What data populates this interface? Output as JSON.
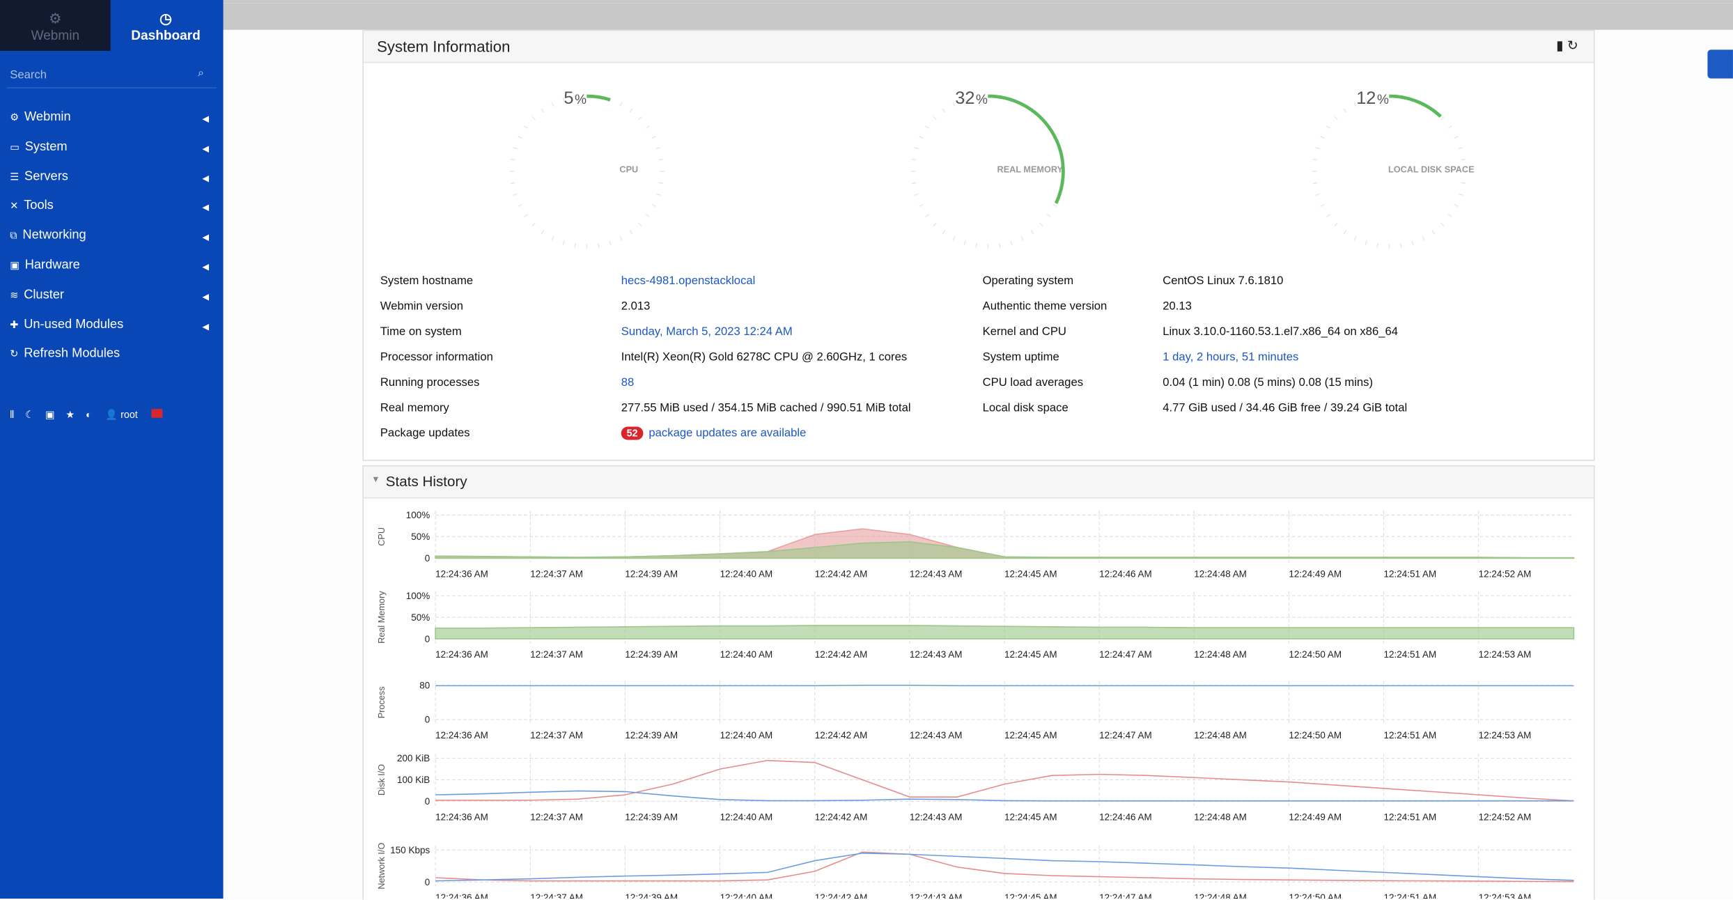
{
  "sidebar": {
    "tabs": [
      "Webmin",
      "Dashboard"
    ],
    "search": "Search",
    "menu": [
      "Webmin",
      "System",
      "Servers",
      "Tools",
      "Networking",
      "Hardware",
      "Cluster",
      "Un-used Modules",
      "Refresh Modules"
    ],
    "user": "root"
  },
  "system_info": {
    "title": "System Information",
    "gauges": [
      {
        "value": 5,
        "unit": "%",
        "label": "CPU",
        "color": "#5cb85c"
      },
      {
        "value": 32,
        "unit": "%",
        "label": "REAL MEMORY",
        "color": "#5cb85c"
      },
      {
        "value": 12,
        "unit": "%",
        "label": "LOCAL DISK SPACE",
        "color": "#5cb85c"
      }
    ],
    "left": [
      [
        "System hostname",
        "hecs-4981.openstacklocal"
      ],
      [
        "Webmin version",
        "2.013"
      ],
      [
        "Time on system",
        "Sunday, March 5, 2023 12:24 AM"
      ],
      [
        "Processor information",
        "Intel(R) Xeon(R) Gold 6278C CPU @ 2.60GHz, 1 cores"
      ],
      [
        "Running processes",
        "88"
      ],
      [
        "Real memory",
        "277.55 MiB used / 354.15 MiB cached / 990.51 MiB total"
      ],
      [
        "Package updates",
        "package updates are available"
      ]
    ],
    "package_updates_count": "52",
    "right": [
      [
        "Operating system",
        "CentOS Linux 7.6.1810"
      ],
      [
        "Authentic theme version",
        "20.13"
      ],
      [
        "Kernel and CPU",
        "Linux 3.10.0-1160.53.1.el7.x86_64 on x86_64"
      ],
      [
        "System uptime",
        "1 day, 2 hours, 51 minutes"
      ],
      [
        "CPU load averages",
        "0.04 (1 min) 0.08 (5 mins) 0.08 (15 mins)"
      ],
      [
        "Local disk space",
        "4.77 GiB used / 34.46 GiB free / 39.24 GiB total"
      ]
    ]
  },
  "stats_history": {
    "title": "Stats History",
    "charts": [
      {
        "type": "area",
        "ylabel": "CPU",
        "ylim": [
          0,
          100
        ],
        "yticks": [
          {
            "value": 0,
            "label": "0"
          },
          {
            "value": 50,
            "label": "50%"
          },
          {
            "value": 100,
            "label": "100%"
          }
        ],
        "xticks": [
          "12:24:36 AM",
          "12:24:37 AM",
          "12:24:39 AM",
          "12:24:40 AM",
          "12:24:42 AM",
          "12:24:43 AM",
          "12:24:45 AM",
          "12:24:46 AM",
          "12:24:48 AM",
          "12:24:49 AM",
          "12:24:51 AM",
          "12:24:52 AM"
        ],
        "series": [
          {
            "color": "#e8a0a0",
            "values": [
              5,
              4,
              3,
              2,
              3,
              6,
              10,
              15,
              55,
              68,
              55,
              25,
              3,
              2,
              2,
              2,
              2,
              2,
              2,
              2,
              2,
              2,
              2,
              1,
              1
            ]
          },
          {
            "color": "#9cc68a",
            "values": [
              5,
              4,
              3,
              2,
              3,
              6,
              10,
              15,
              25,
              35,
              38,
              25,
              3,
              2,
              2,
              2,
              2,
              2,
              2,
              2,
              2,
              2,
              2,
              1,
              1
            ]
          }
        ]
      },
      {
        "type": "area",
        "ylabel": "Real Memory",
        "ylim": [
          0,
          100
        ],
        "yticks": [
          {
            "value": 0,
            "label": "0"
          },
          {
            "value": 50,
            "label": "50%"
          },
          {
            "value": 100,
            "label": "100%"
          }
        ],
        "xticks": [
          "12:24:36 AM",
          "12:24:37 AM",
          "12:24:39 AM",
          "12:24:40 AM",
          "12:24:42 AM",
          "12:24:43 AM",
          "12:24:45 AM",
          "12:24:47 AM",
          "12:24:48 AM",
          "12:24:50 AM",
          "12:24:51 AM",
          "12:24:53 AM"
        ],
        "series": [
          {
            "color": "#9cc68a",
            "values": [
              25,
              25,
              26,
              27,
              28,
              29,
              30,
              30,
              31,
              31,
              31,
              30,
              29,
              28,
              27,
              27,
              26,
              26,
              26,
              26,
              26,
              26,
              26,
              26,
              26
            ]
          }
        ]
      },
      {
        "type": "line",
        "ylabel": "Process",
        "ylim": [
          0,
          80
        ],
        "yticks": [
          0,
          80
        ],
        "xticks": [
          "12:24:36 AM",
          "12:24:37 AM",
          "12:24:39 AM",
          "12:24:40 AM",
          "12:24:42 AM",
          "12:24:43 AM",
          "12:24:45 AM",
          "12:24:47 AM",
          "12:24:48 AM",
          "12:24:50 AM",
          "12:24:51 AM",
          "12:24:53 AM"
        ],
        "series": [
          {
            "color": "#6a9be0",
            "values": [
              79,
              79,
              79,
              79,
              79,
              79,
              79,
              79,
              79,
              80,
              80,
              79,
              79,
              79,
              79,
              79,
              79,
              79,
              79,
              79,
              79,
              79,
              79,
              79,
              79
            ]
          }
        ]
      },
      {
        "type": "line",
        "ylabel": "Disk I/O",
        "ylim": [
          0,
          200
        ],
        "yticks": [
          {
            "value": 0,
            "label": "0"
          },
          {
            "value": 100,
            "label": "100 KiB"
          },
          {
            "value": 200,
            "label": "200 KiB"
          }
        ],
        "xticks": [
          "12:24:36 AM",
          "12:24:37 AM",
          "12:24:39 AM",
          "12:24:40 AM",
          "12:24:42 AM",
          "12:24:43 AM",
          "12:24:45 AM",
          "12:24:46 AM",
          "12:24:48 AM",
          "12:24:49 AM",
          "12:24:51 AM",
          "12:24:52 AM"
        ],
        "series": [
          {
            "color": "#e88a8a",
            "values": [
              5,
              5,
              5,
              10,
              30,
              80,
              150,
              190,
              180,
              100,
              20,
              20,
              80,
              120,
              125,
              120,
              110,
              100,
              90,
              75,
              60,
              45,
              30,
              15,
              2
            ]
          },
          {
            "color": "#6a9be0",
            "values": [
              30,
              35,
              42,
              48,
              45,
              25,
              8,
              3,
              3,
              5,
              10,
              8,
              3,
              2,
              2,
              2,
              2,
              2,
              2,
              2,
              2,
              2,
              2,
              2,
              2
            ]
          }
        ]
      },
      {
        "type": "line",
        "ylabel": "Network I/O",
        "ylim": [
          0,
          150
        ],
        "yticks": [
          {
            "value": 0,
            "label": "0"
          },
          {
            "value": 150,
            "label": "150 Kbps"
          }
        ],
        "xticks": [
          "12:24:36 AM",
          "12:24:37 AM",
          "12:24:39 AM",
          "12:24:40 AM",
          "12:24:42 AM",
          "12:24:43 AM",
          "12:24:45 AM",
          "12:24:47 AM",
          "12:24:48 AM",
          "12:24:50 AM",
          "12:24:51 AM",
          "12:24:53 AM"
        ],
        "series": [
          {
            "color": "#e88a8a",
            "values": [
              20,
              10,
              5,
              5,
              5,
              5,
              5,
              10,
              50,
              140,
              130,
              70,
              40,
              30,
              25,
              20,
              15,
              12,
              10,
              8,
              6,
              5,
              4,
              3,
              2
            ]
          },
          {
            "color": "#6a9be0",
            "values": [
              5,
              10,
              15,
              22,
              28,
              32,
              38,
              45,
              100,
              135,
              130,
              120,
              110,
              100,
              95,
              88,
              80,
              72,
              65,
              55,
              45,
              35,
              25,
              15,
              8
            ]
          }
        ]
      }
    ]
  }
}
